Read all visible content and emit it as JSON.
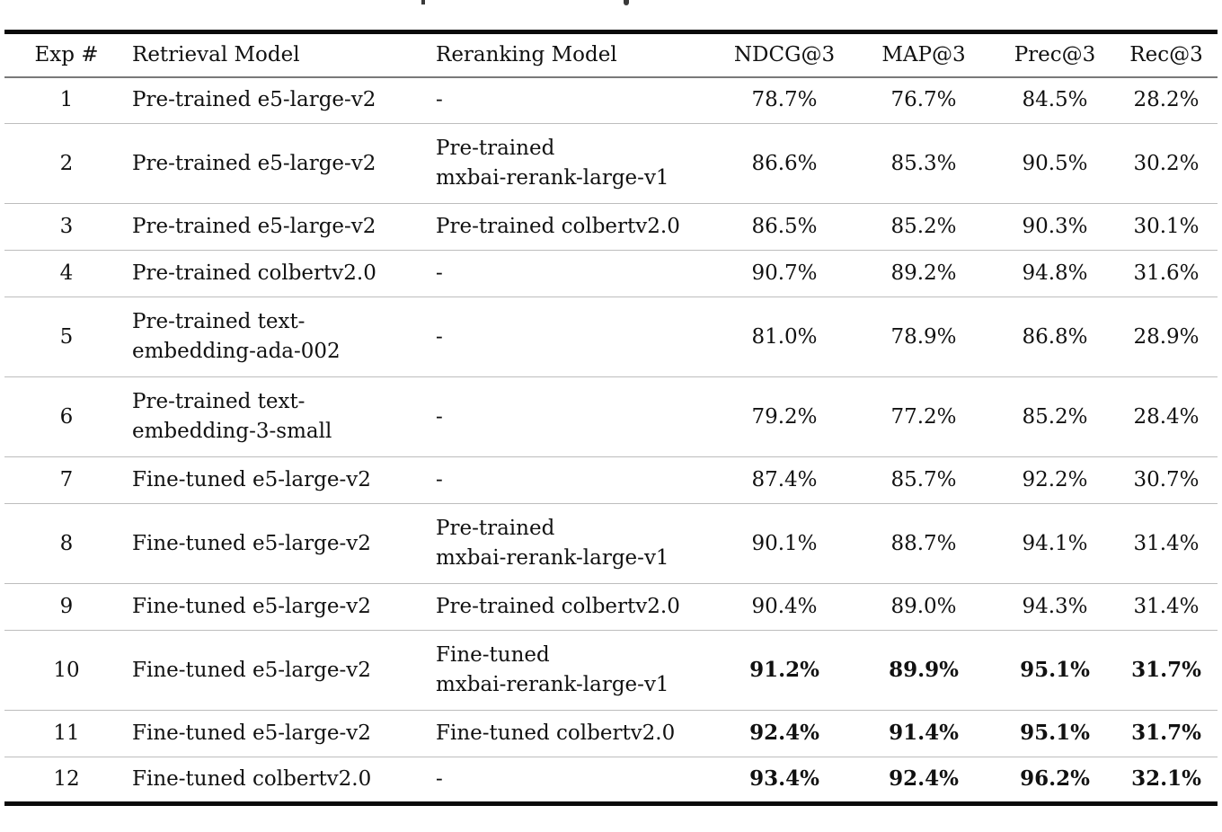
{
  "table": {
    "columns": [
      "Exp #",
      "Retrieval Model",
      "Reranking Model",
      "NDCG@3",
      "MAP@3",
      "Prec@3",
      "Rec@3"
    ],
    "rows": [
      {
        "exp": "1",
        "retrieval": [
          "Pre-trained e5-large-v2"
        ],
        "reranking": [
          "-"
        ],
        "metrics": [
          "78.7%",
          "76.7%",
          "84.5%",
          "28.2%"
        ],
        "bold": false
      },
      {
        "exp": "2",
        "retrieval": [
          "Pre-trained e5-large-v2"
        ],
        "reranking": [
          "Pre-trained",
          "mxbai-rerank-large-v1"
        ],
        "metrics": [
          "86.6%",
          "85.3%",
          "90.5%",
          "30.2%"
        ],
        "bold": false
      },
      {
        "exp": "3",
        "retrieval": [
          "Pre-trained e5-large-v2"
        ],
        "reranking": [
          "Pre-trained colbertv2.0"
        ],
        "metrics": [
          "86.5%",
          "85.2%",
          "90.3%",
          "30.1%"
        ],
        "bold": false
      },
      {
        "exp": "4",
        "retrieval": [
          "Pre-trained colbertv2.0"
        ],
        "reranking": [
          "-"
        ],
        "metrics": [
          "90.7%",
          "89.2%",
          "94.8%",
          "31.6%"
        ],
        "bold": false
      },
      {
        "exp": "5",
        "retrieval": [
          "Pre-trained text-",
          "embedding-ada-002"
        ],
        "reranking": [
          "-"
        ],
        "metrics": [
          "81.0%",
          "78.9%",
          "86.8%",
          "28.9%"
        ],
        "bold": false
      },
      {
        "exp": "6",
        "retrieval": [
          "Pre-trained text-",
          "embedding-3-small"
        ],
        "reranking": [
          "-"
        ],
        "metrics": [
          "79.2%",
          "77.2%",
          "85.2%",
          "28.4%"
        ],
        "bold": false
      },
      {
        "exp": "7",
        "retrieval": [
          "Fine-tuned e5-large-v2"
        ],
        "reranking": [
          "-"
        ],
        "metrics": [
          "87.4%",
          "85.7%",
          "92.2%",
          "30.7%"
        ],
        "bold": false
      },
      {
        "exp": "8",
        "retrieval": [
          "Fine-tuned e5-large-v2"
        ],
        "reranking": [
          "Pre-trained",
          "mxbai-rerank-large-v1"
        ],
        "metrics": [
          "90.1%",
          "88.7%",
          "94.1%",
          "31.4%"
        ],
        "bold": false
      },
      {
        "exp": "9",
        "retrieval": [
          "Fine-tuned e5-large-v2"
        ],
        "reranking": [
          "Pre-trained colbertv2.0"
        ],
        "metrics": [
          "90.4%",
          "89.0%",
          "94.3%",
          "31.4%"
        ],
        "bold": false
      },
      {
        "exp": "10",
        "retrieval": [
          "Fine-tuned e5-large-v2"
        ],
        "reranking": [
          "Fine-tuned",
          "mxbai-rerank-large-v1"
        ],
        "metrics": [
          "91.2%",
          "89.9%",
          "95.1%",
          "31.7%"
        ],
        "bold": true
      },
      {
        "exp": "11",
        "retrieval": [
          "Fine-tuned e5-large-v2"
        ],
        "reranking": [
          "Fine-tuned colbertv2.0"
        ],
        "metrics": [
          "92.4%",
          "91.4%",
          "95.1%",
          "31.7%"
        ],
        "bold": true
      },
      {
        "exp": "12",
        "retrieval": [
          "Fine-tuned colbertv2.0"
        ],
        "reranking": [
          "-"
        ],
        "metrics": [
          "93.4%",
          "92.4%",
          "96.2%",
          "32.1%"
        ],
        "bold": true
      }
    ]
  },
  "colors": {
    "thick_rule": "#0a0a0a",
    "header_rule": "#7a7a7a",
    "row_rule": "#bdbdbd",
    "text": "#111111"
  }
}
